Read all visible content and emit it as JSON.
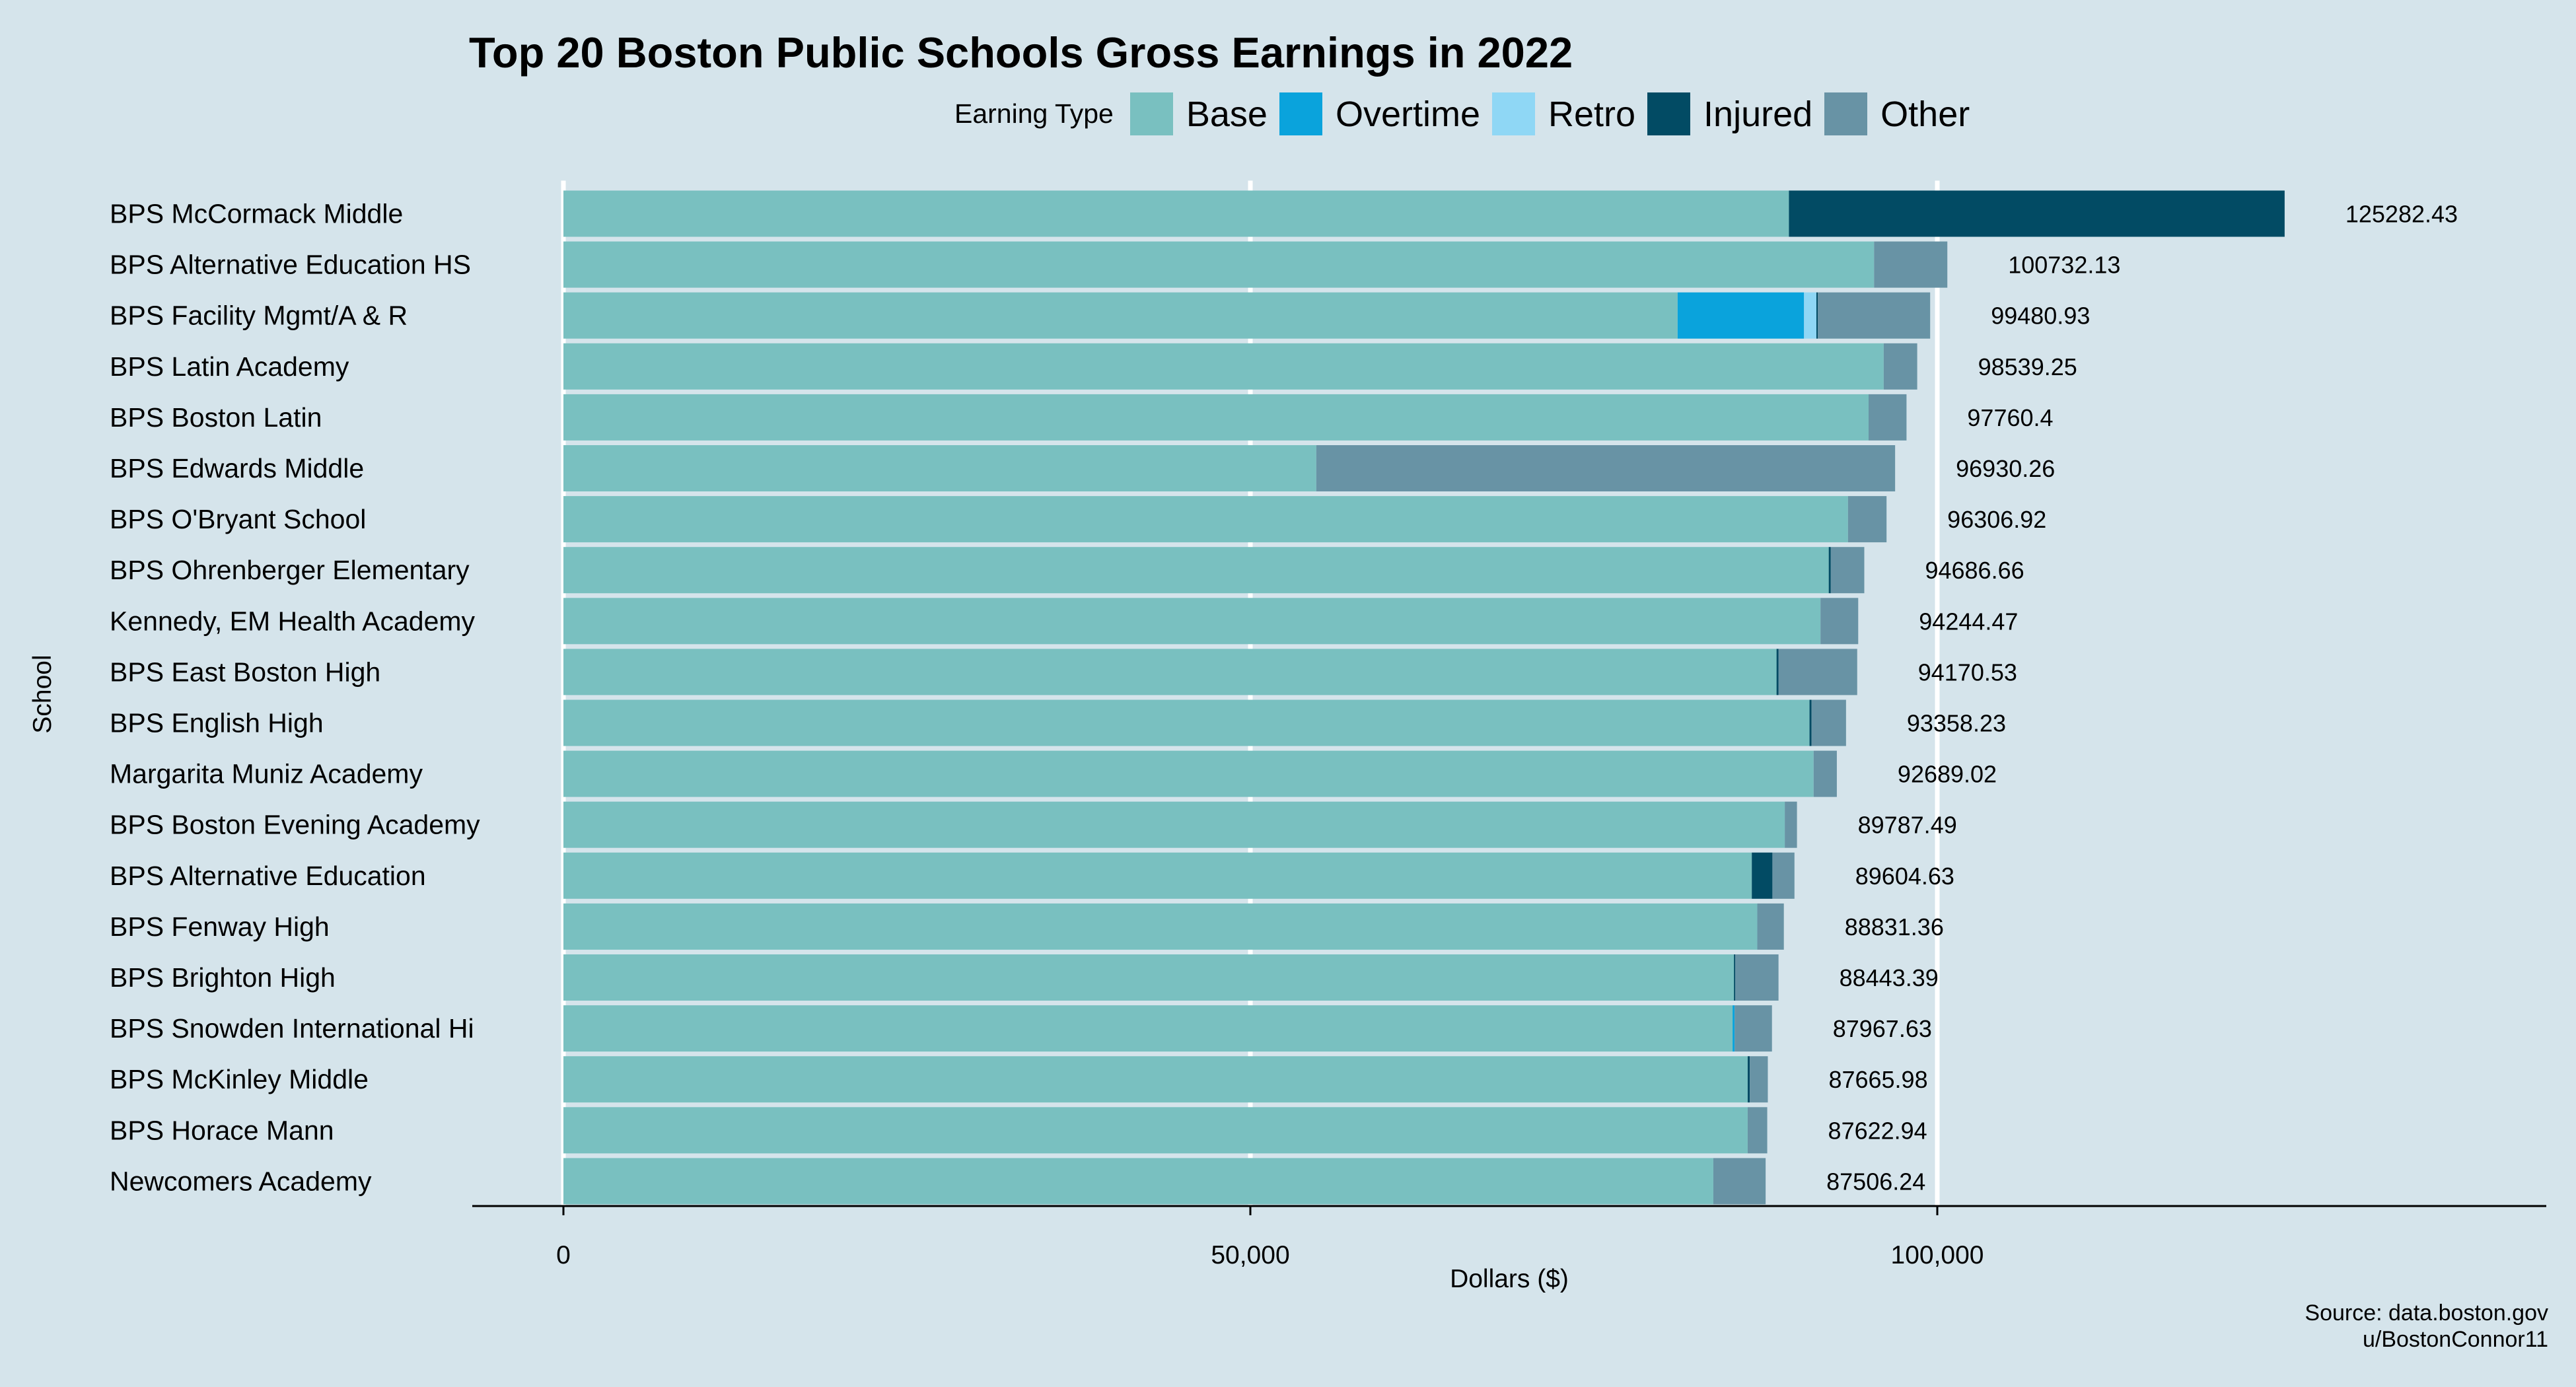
{
  "chart_data": {
    "type": "bar",
    "orientation": "horizontal",
    "stacked": true,
    "title": "Top 20 Boston Public Schools Gross Earnings in 2022",
    "xlabel": "Dollars ($)",
    "ylabel": "School",
    "xlim": [
      -6800,
      144000
    ],
    "x_ticks": [
      0,
      50000,
      100000
    ],
    "x_tick_labels": [
      "0",
      "50,000",
      "100,000"
    ],
    "legend": {
      "title": "Earning Type",
      "placement": "top",
      "items": [
        {
          "name": "Base",
          "color": "#79c0c0"
        },
        {
          "name": "Overtime",
          "color": "#0aa3dc"
        },
        {
          "name": "Retro",
          "color": "#8fd7f5"
        },
        {
          "name": "Injured",
          "color": "#024b64"
        },
        {
          "name": "Other",
          "color": "#6893a5"
        }
      ]
    },
    "categories": [
      "BPS McCormack Middle",
      "BPS Alternative Education HS",
      "BPS Facility Mgmt/A & R",
      "BPS Latin Academy",
      "BPS Boston Latin",
      "BPS Edwards Middle",
      "BPS O'Bryant School",
      "BPS Ohrenberger Elementary",
      "Kennedy, EM Health Academy",
      "BPS East Boston High",
      "BPS English High",
      "Margarita Muniz Academy",
      "BPS Boston Evening Academy",
      "BPS Alternative Education",
      "BPS Fenway High",
      "BPS Brighton High",
      "BPS Snowden International Hi",
      "BPS McKinley Middle",
      "BPS Horace Mann",
      "Newcomers Academy"
    ],
    "series": [
      {
        "name": "Base",
        "values": [
          89200,
          95400,
          81100,
          96100,
          95000,
          54800,
          93500,
          92100,
          91500,
          88300,
          90700,
          91000,
          88900,
          86500,
          86900,
          85200,
          85100,
          86200,
          86200,
          83700
        ]
      },
      {
        "name": "Overtime",
        "values": [
          0,
          0,
          9200,
          0,
          0,
          0,
          0,
          0,
          0,
          0,
          0,
          0,
          0,
          0,
          0,
          0,
          150,
          0,
          0,
          0
        ]
      },
      {
        "name": "Retro",
        "values": [
          0,
          0,
          900,
          0,
          0,
          0,
          0,
          0,
          0,
          0,
          0,
          0,
          0,
          0,
          0,
          0,
          0,
          0,
          0,
          0
        ]
      },
      {
        "name": "Injured",
        "values": [
          36082.43,
          0,
          100,
          0,
          0,
          0,
          0,
          150,
          0,
          150,
          150,
          0,
          0,
          1500,
          0,
          100,
          0,
          150,
          0,
          0
        ]
      },
      {
        "name": "Other",
        "values": [
          0,
          5332.13,
          8180.93,
          2439.25,
          2760.4,
          42130.26,
          2806.92,
          2436.66,
          2744.47,
          5720.53,
          2508.23,
          1689.02,
          887.49,
          1604.63,
          1931.36,
          3143.39,
          2717.63,
          1315.98,
          1422.94,
          3806.24
        ]
      }
    ],
    "totals": [
      125282.43,
      100732.13,
      99480.93,
      98539.25,
      97760.4,
      96930.26,
      96306.92,
      94686.66,
      94244.47,
      94170.53,
      93358.23,
      92689.02,
      89787.49,
      89604.63,
      88831.36,
      88443.39,
      87967.63,
      87665.98,
      87622.94,
      87506.24
    ],
    "total_labels": [
      "125282.43",
      "100732.13",
      "99480.93",
      "98539.25",
      "97760.4",
      "96930.26",
      "96306.92",
      "94686.66",
      "94244.47",
      "94170.53",
      "93358.23",
      "92689.02",
      "89787.49",
      "89604.63",
      "88831.36",
      "88443.39",
      "87967.63",
      "87665.98",
      "87622.94",
      "87506.24"
    ],
    "grid": "vertical major lines, white",
    "source_lines": [
      "Source: data.boston.gov",
      "u/BostonConnor11"
    ]
  }
}
